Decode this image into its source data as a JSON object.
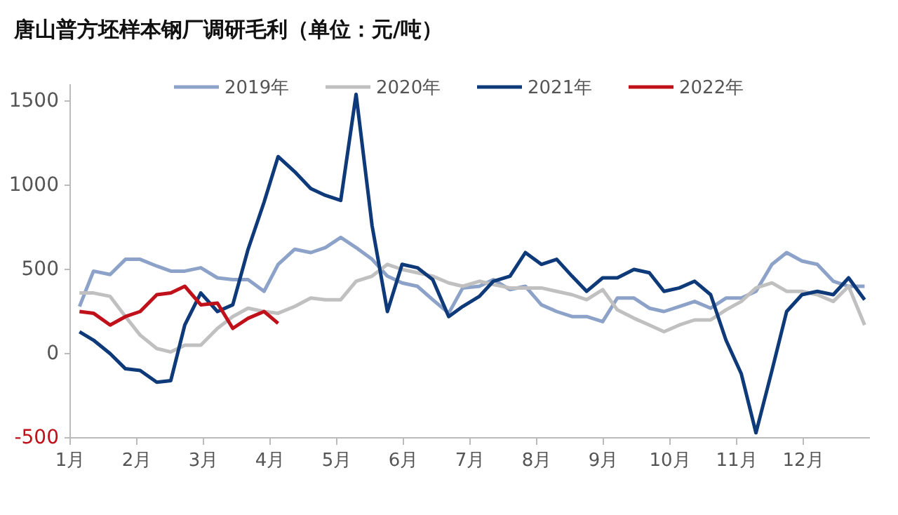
{
  "chart_data": {
    "type": "line",
    "title": "唐山普方坯样本钢厂调研毛利（单位：元/吨）",
    "x": [
      1.14,
      1.35,
      1.6,
      1.83,
      2.05,
      2.3,
      2.51,
      2.72,
      2.96,
      3.21,
      3.44,
      3.67,
      3.91,
      4.12,
      4.37,
      4.61,
      4.83,
      5.06,
      5.29,
      5.53,
      5.76,
      5.98,
      6.21,
      6.44,
      6.68,
      6.89,
      7.14,
      7.35,
      7.6,
      7.83,
      8.07,
      8.3,
      8.53,
      8.75,
      8.99,
      9.21,
      9.46,
      9.69,
      9.91,
      10.14,
      10.37,
      10.61,
      10.84,
      11.07,
      11.29,
      11.53,
      11.75,
      11.98,
      12.21,
      12.45,
      12.68,
      12.92
    ],
    "series": [
      {
        "name": "2019年",
        "color": "#8da2c8",
        "values": [
          280,
          490,
          470,
          560,
          560,
          520,
          490,
          490,
          510,
          450,
          440,
          440,
          370,
          530,
          620,
          600,
          630,
          690,
          630,
          560,
          460,
          420,
          400,
          320,
          240,
          390,
          400,
          440,
          380,
          400,
          290,
          250,
          220,
          220,
          190,
          330,
          330,
          270,
          250,
          280,
          310,
          270,
          330,
          330,
          370,
          530,
          600,
          550,
          530,
          430,
          400,
          400
        ]
      },
      {
        "name": "2020年",
        "color": "#c0c0c0",
        "values": [
          360,
          360,
          340,
          220,
          110,
          30,
          10,
          50,
          50,
          150,
          220,
          270,
          250,
          240,
          280,
          330,
          320,
          320,
          430,
          460,
          530,
          500,
          480,
          460,
          420,
          400,
          430,
          410,
          390,
          390,
          390,
          370,
          350,
          320,
          380,
          260,
          210,
          170,
          130,
          170,
          200,
          200,
          260,
          310,
          390,
          420,
          370,
          370,
          350,
          310,
          400,
          170
        ]
      },
      {
        "name": "2021年",
        "color": "#0e3a7a",
        "values": [
          130,
          80,
          0,
          -90,
          -100,
          -170,
          -160,
          170,
          360,
          250,
          290,
          620,
          900,
          1170,
          1080,
          980,
          940,
          910,
          1540,
          760,
          250,
          530,
          510,
          440,
          220,
          280,
          340,
          430,
          460,
          600,
          530,
          560,
          460,
          370,
          450,
          450,
          500,
          480,
          370,
          390,
          430,
          350,
          80,
          -120,
          -470,
          -100,
          250,
          350,
          370,
          350,
          450,
          320
        ]
      },
      {
        "name": "2022年",
        "color": "#c0101a",
        "values": [
          250,
          240,
          170,
          220,
          250,
          350,
          360,
          400,
          290,
          300,
          150,
          210,
          250,
          180,
          null,
          null,
          null,
          null,
          null,
          null,
          null,
          null,
          null,
          null,
          null,
          null,
          null,
          null,
          null,
          null,
          null,
          null,
          null,
          null,
          null,
          null,
          null,
          null,
          null,
          null,
          null,
          null,
          null,
          null,
          null,
          null,
          null,
          null,
          null,
          null,
          null,
          null
        ]
      }
    ],
    "xlim": [
      1,
      13
    ],
    "xticks": [
      {
        "value": 1,
        "label": "1月"
      },
      {
        "value": 2,
        "label": "2月"
      },
      {
        "value": 3,
        "label": "3月"
      },
      {
        "value": 4,
        "label": "4月"
      },
      {
        "value": 5,
        "label": "5月"
      },
      {
        "value": 6,
        "label": "6月"
      },
      {
        "value": 7,
        "label": "7月"
      },
      {
        "value": 8,
        "label": "8月"
      },
      {
        "value": 9,
        "label": "9月"
      },
      {
        "value": 10,
        "label": "10月"
      },
      {
        "value": 11,
        "label": "11月"
      },
      {
        "value": 12,
        "label": "12月"
      }
    ],
    "ylim": [
      -500,
      1600
    ],
    "yticks": [
      -500,
      0,
      500,
      1000,
      1500
    ],
    "grid": false,
    "legend": "top",
    "marker": "none",
    "line_style": "solid"
  }
}
